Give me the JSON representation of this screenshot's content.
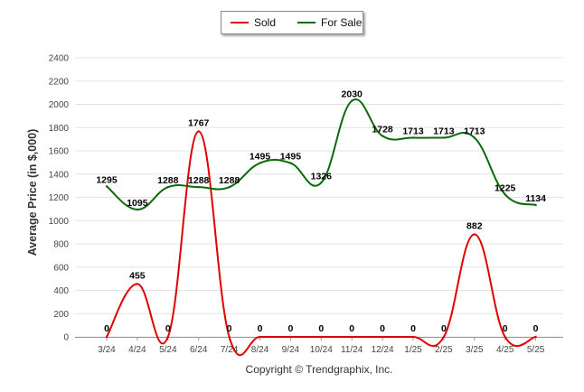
{
  "chart_data": {
    "type": "line",
    "categories": [
      "3/24",
      "4/24",
      "5/24",
      "6/24",
      "7/24",
      "8/24",
      "9/24",
      "10/24",
      "11/24",
      "12/24",
      "1/25",
      "2/25",
      "3/25",
      "4/25",
      "5/25"
    ],
    "series": [
      {
        "name": "Sold",
        "color": "#e00000",
        "values": [
          0,
          455,
          0,
          1767,
          0,
          0,
          0,
          0,
          0,
          0,
          0,
          0,
          882,
          0,
          0
        ]
      },
      {
        "name": "For Sale",
        "color": "#0a6a0a",
        "values": [
          1295,
          1095,
          1288,
          1288,
          1288,
          1495,
          1495,
          1326,
          2030,
          1728,
          1713,
          1713,
          1713,
          1225,
          1134
        ]
      }
    ],
    "ylabel": "Average Price (in $,000)",
    "ylim": [
      0,
      2400
    ],
    "yticks": [
      0,
      200,
      400,
      600,
      800,
      1000,
      1200,
      1400,
      1600,
      1800,
      2000,
      2200,
      2400
    ],
    "grid": true,
    "legend_position": "top-center",
    "footer": "Copyright © Trendgraphix, Inc."
  }
}
